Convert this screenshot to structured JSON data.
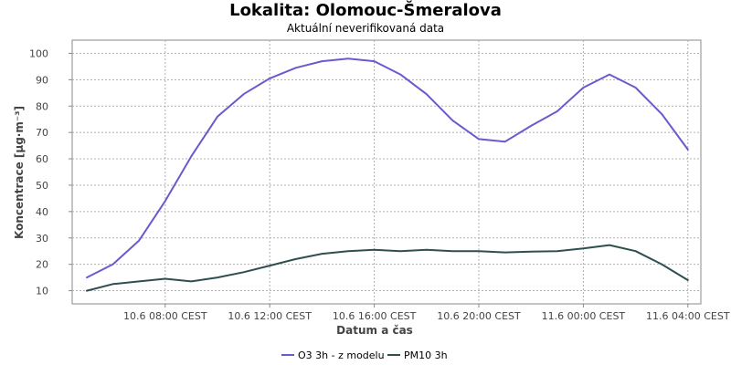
{
  "chart_data": {
    "type": "line",
    "title": "Lokalita: Olomouc-Šmeralova",
    "subtitle": "Aktuální neverifikovaná data",
    "xlabel": "Datum a čas",
    "ylabel": "Koncentrace [µg·m⁻³]",
    "ylim": [
      5,
      105
    ],
    "yticks": [
      10,
      20,
      30,
      40,
      50,
      60,
      70,
      80,
      90,
      100
    ],
    "x": [
      "10.6 05:00",
      "10.6 06:00",
      "10.6 07:00",
      "10.6 08:00",
      "10.6 09:00",
      "10.6 10:00",
      "10.6 11:00",
      "10.6 12:00",
      "10.6 13:00",
      "10.6 14:00",
      "10.6 15:00",
      "10.6 16:00",
      "10.6 17:00",
      "10.6 18:00",
      "10.6 19:00",
      "10.6 20:00",
      "10.6 21:00",
      "10.6 22:00",
      "10.6 23:00",
      "11.6 00:00",
      "11.6 01:00",
      "11.6 02:00",
      "11.6 03:00",
      "11.6 04:00"
    ],
    "xticks": [
      {
        "index": 3,
        "label": "10.6 08:00 CEST"
      },
      {
        "index": 7,
        "label": "10.6 12:00 CEST"
      },
      {
        "index": 11,
        "label": "10.6 16:00 CEST"
      },
      {
        "index": 15,
        "label": "10.6 20:00 CEST"
      },
      {
        "index": 19,
        "label": "11.6 00:00 CEST"
      },
      {
        "index": 23,
        "label": "11.6 04:00 CEST"
      }
    ],
    "grid": true,
    "legend_position": "bottom",
    "series": [
      {
        "name": "O3 3h - z modelu",
        "color": "#6a5acd",
        "values": [
          15,
          20,
          29,
          44,
          61,
          76,
          84.5,
          90.5,
          94.5,
          97,
          98,
          97,
          92,
          84.5,
          74.5,
          67.5,
          66.5,
          72.5,
          78,
          87,
          92,
          87,
          77,
          63.5
        ]
      },
      {
        "name": "PM10 3h",
        "color": "#2f4f4f",
        "values": [
          10,
          12.5,
          13.5,
          14.5,
          13.5,
          15,
          17,
          19.5,
          22,
          24,
          25,
          25.5,
          25,
          25.5,
          25,
          25,
          24.5,
          24.8,
          25,
          26,
          27.3,
          25,
          20,
          14
        ]
      }
    ]
  }
}
